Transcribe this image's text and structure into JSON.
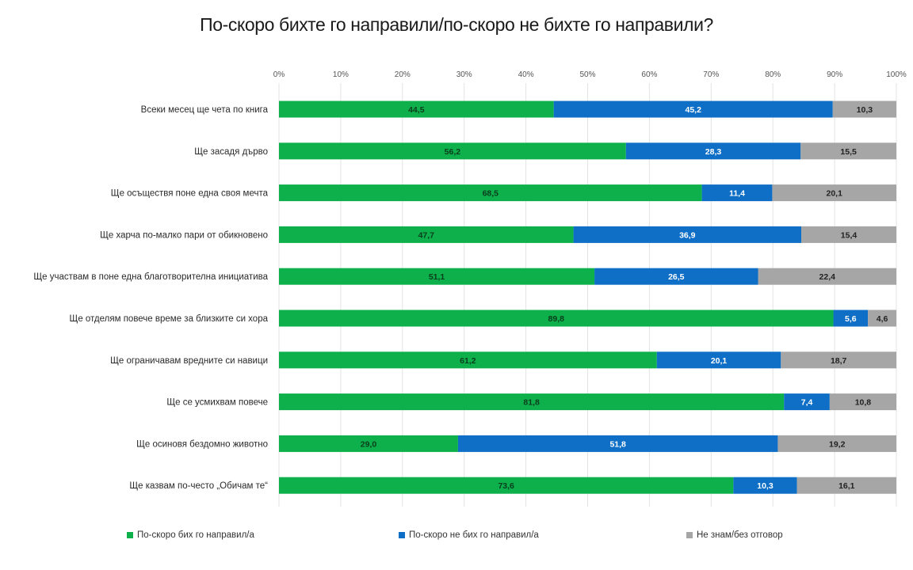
{
  "chart_data": {
    "type": "bar",
    "orientation": "horizontal",
    "stacked": true,
    "title": "По-скоро бихте го направили/по-скоро не бихте го направили?",
    "xlabel": "",
    "ylabel": "",
    "xlim": [
      0,
      100
    ],
    "x_ticks": [
      "0%",
      "10%",
      "20%",
      "30%",
      "40%",
      "50%",
      "60%",
      "70%",
      "80%",
      "90%",
      "100%"
    ],
    "grid": true,
    "legend_position": "bottom",
    "categories": [
      "Всеки месец ще чета по книга",
      "Ще засадя дърво",
      "Ще осъществя поне една своя мечта",
      "Ще харча по-малко пари от обикновено",
      "Ще участвам в  поне една благотворителна инициатива",
      "Ще отделям повече време за близките си хора",
      "Ще ограничавам вредните си навици",
      "Ще се усмихвам повече",
      "Ще осиновя бездомно животно",
      "Ще казвам по-често „Обичам те“"
    ],
    "series": [
      {
        "name": "По-скоро бих го направил/а",
        "color": "#0db04b",
        "label_color": "#0a3d1c",
        "values": [
          44.5,
          56.2,
          68.5,
          47.7,
          51.1,
          89.8,
          61.2,
          81.8,
          29.0,
          73.6
        ],
        "labels": [
          "44,5",
          "56,2",
          "68,5",
          "47,7",
          "51,1",
          "89,8",
          "61,2",
          "81,8",
          "29,0",
          "73,6"
        ]
      },
      {
        "name": "По-скоро  не бих го направил/а",
        "color": "#0f6fc6",
        "label_color": "#ffffff",
        "values": [
          45.2,
          28.3,
          11.4,
          36.9,
          26.5,
          5.6,
          20.1,
          7.4,
          51.8,
          10.3
        ],
        "labels": [
          "45,2",
          "28,3",
          "11,4",
          "36,9",
          "26,5",
          "5,6",
          "20,1",
          "7,4",
          "51,8",
          "10,3"
        ]
      },
      {
        "name": "Не знам/без отговор",
        "color": "#a6a6a6",
        "label_color": "#222222",
        "values": [
          10.3,
          15.5,
          20.1,
          15.4,
          22.4,
          4.6,
          18.7,
          10.8,
          19.2,
          16.1
        ],
        "labels": [
          "10,3",
          "15,5",
          "20,1",
          "15,4",
          "22,4",
          "4,6",
          "18,7",
          "10,8",
          "19,2",
          "16,1"
        ]
      }
    ]
  }
}
